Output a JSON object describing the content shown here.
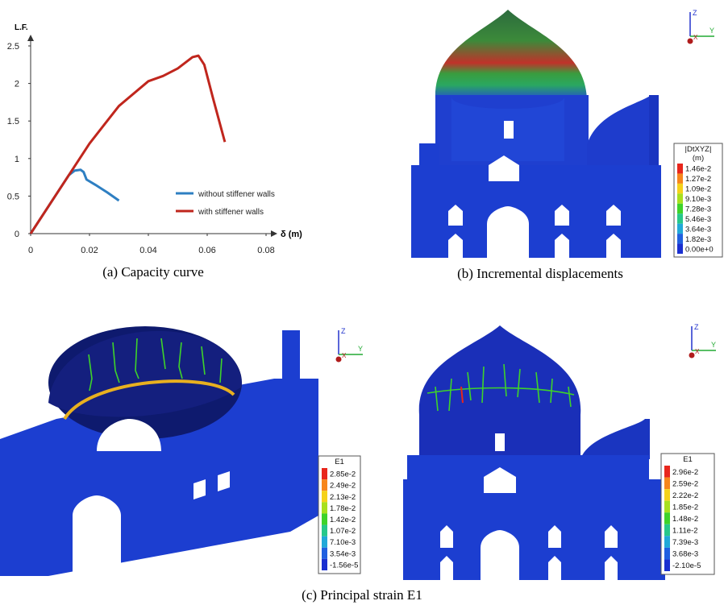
{
  "chart_data": {
    "type": "line",
    "y_label": "L.F.",
    "x_label": "δ (m)",
    "xlim": [
      0,
      0.08
    ],
    "xticks": [
      0,
      0.02,
      0.04,
      0.06,
      0.08
    ],
    "ylim": [
      0,
      2.5
    ],
    "yticks": [
      0,
      0.5,
      1,
      1.5,
      2,
      2.5
    ],
    "legend": "lower-right",
    "series": [
      {
        "name": "without stiffener walls",
        "color": "#2e7fc2",
        "x": [
          0,
          0.005,
          0.01,
          0.013,
          0.015,
          0.017,
          0.018,
          0.019,
          0.022,
          0.026,
          0.03
        ],
        "values": [
          0,
          0.3,
          0.6,
          0.78,
          0.84,
          0.85,
          0.82,
          0.72,
          0.65,
          0.55,
          0.44
        ]
      },
      {
        "name": "with stiffener walls",
        "color": "#c0261d",
        "x": [
          0,
          0.01,
          0.02,
          0.03,
          0.04,
          0.045,
          0.05,
          0.055,
          0.057,
          0.059,
          0.062,
          0.066
        ],
        "values": [
          0,
          0.6,
          1.2,
          1.7,
          2.03,
          2.1,
          2.2,
          2.35,
          2.37,
          2.25,
          1.8,
          1.22
        ]
      }
    ]
  },
  "captions": {
    "a": "(a) Capacity curve",
    "b": "(b) Incremental displacements",
    "c": "(c) Principal strain E1"
  },
  "colorbars": [
    {
      "title": "|DtXYZ|",
      "unit": "(m)",
      "labels": [
        "1.46e-2",
        "1.27e-2",
        "1.09e-2",
        "9.10e-3",
        "7.28e-3",
        "5.46e-3",
        "3.64e-3",
        "1.82e-3",
        "0.00e+0"
      ]
    },
    {
      "title": "E1",
      "labels": [
        "2.85e-2",
        "2.49e-2",
        "2.13e-2",
        "1.78e-2",
        "1.42e-2",
        "1.07e-2",
        "7.10e-3",
        "3.54e-3",
        "-1.56e-5"
      ]
    },
    {
      "title": "E1",
      "labels": [
        "2.96e-2",
        "2.59e-2",
        "2.22e-2",
        "1.85e-2",
        "1.48e-2",
        "1.11e-2",
        "7.39e-3",
        "3.68e-3",
        "-2.10e-5"
      ]
    }
  ],
  "triad_labels": [
    "Z",
    "Y",
    "X"
  ]
}
